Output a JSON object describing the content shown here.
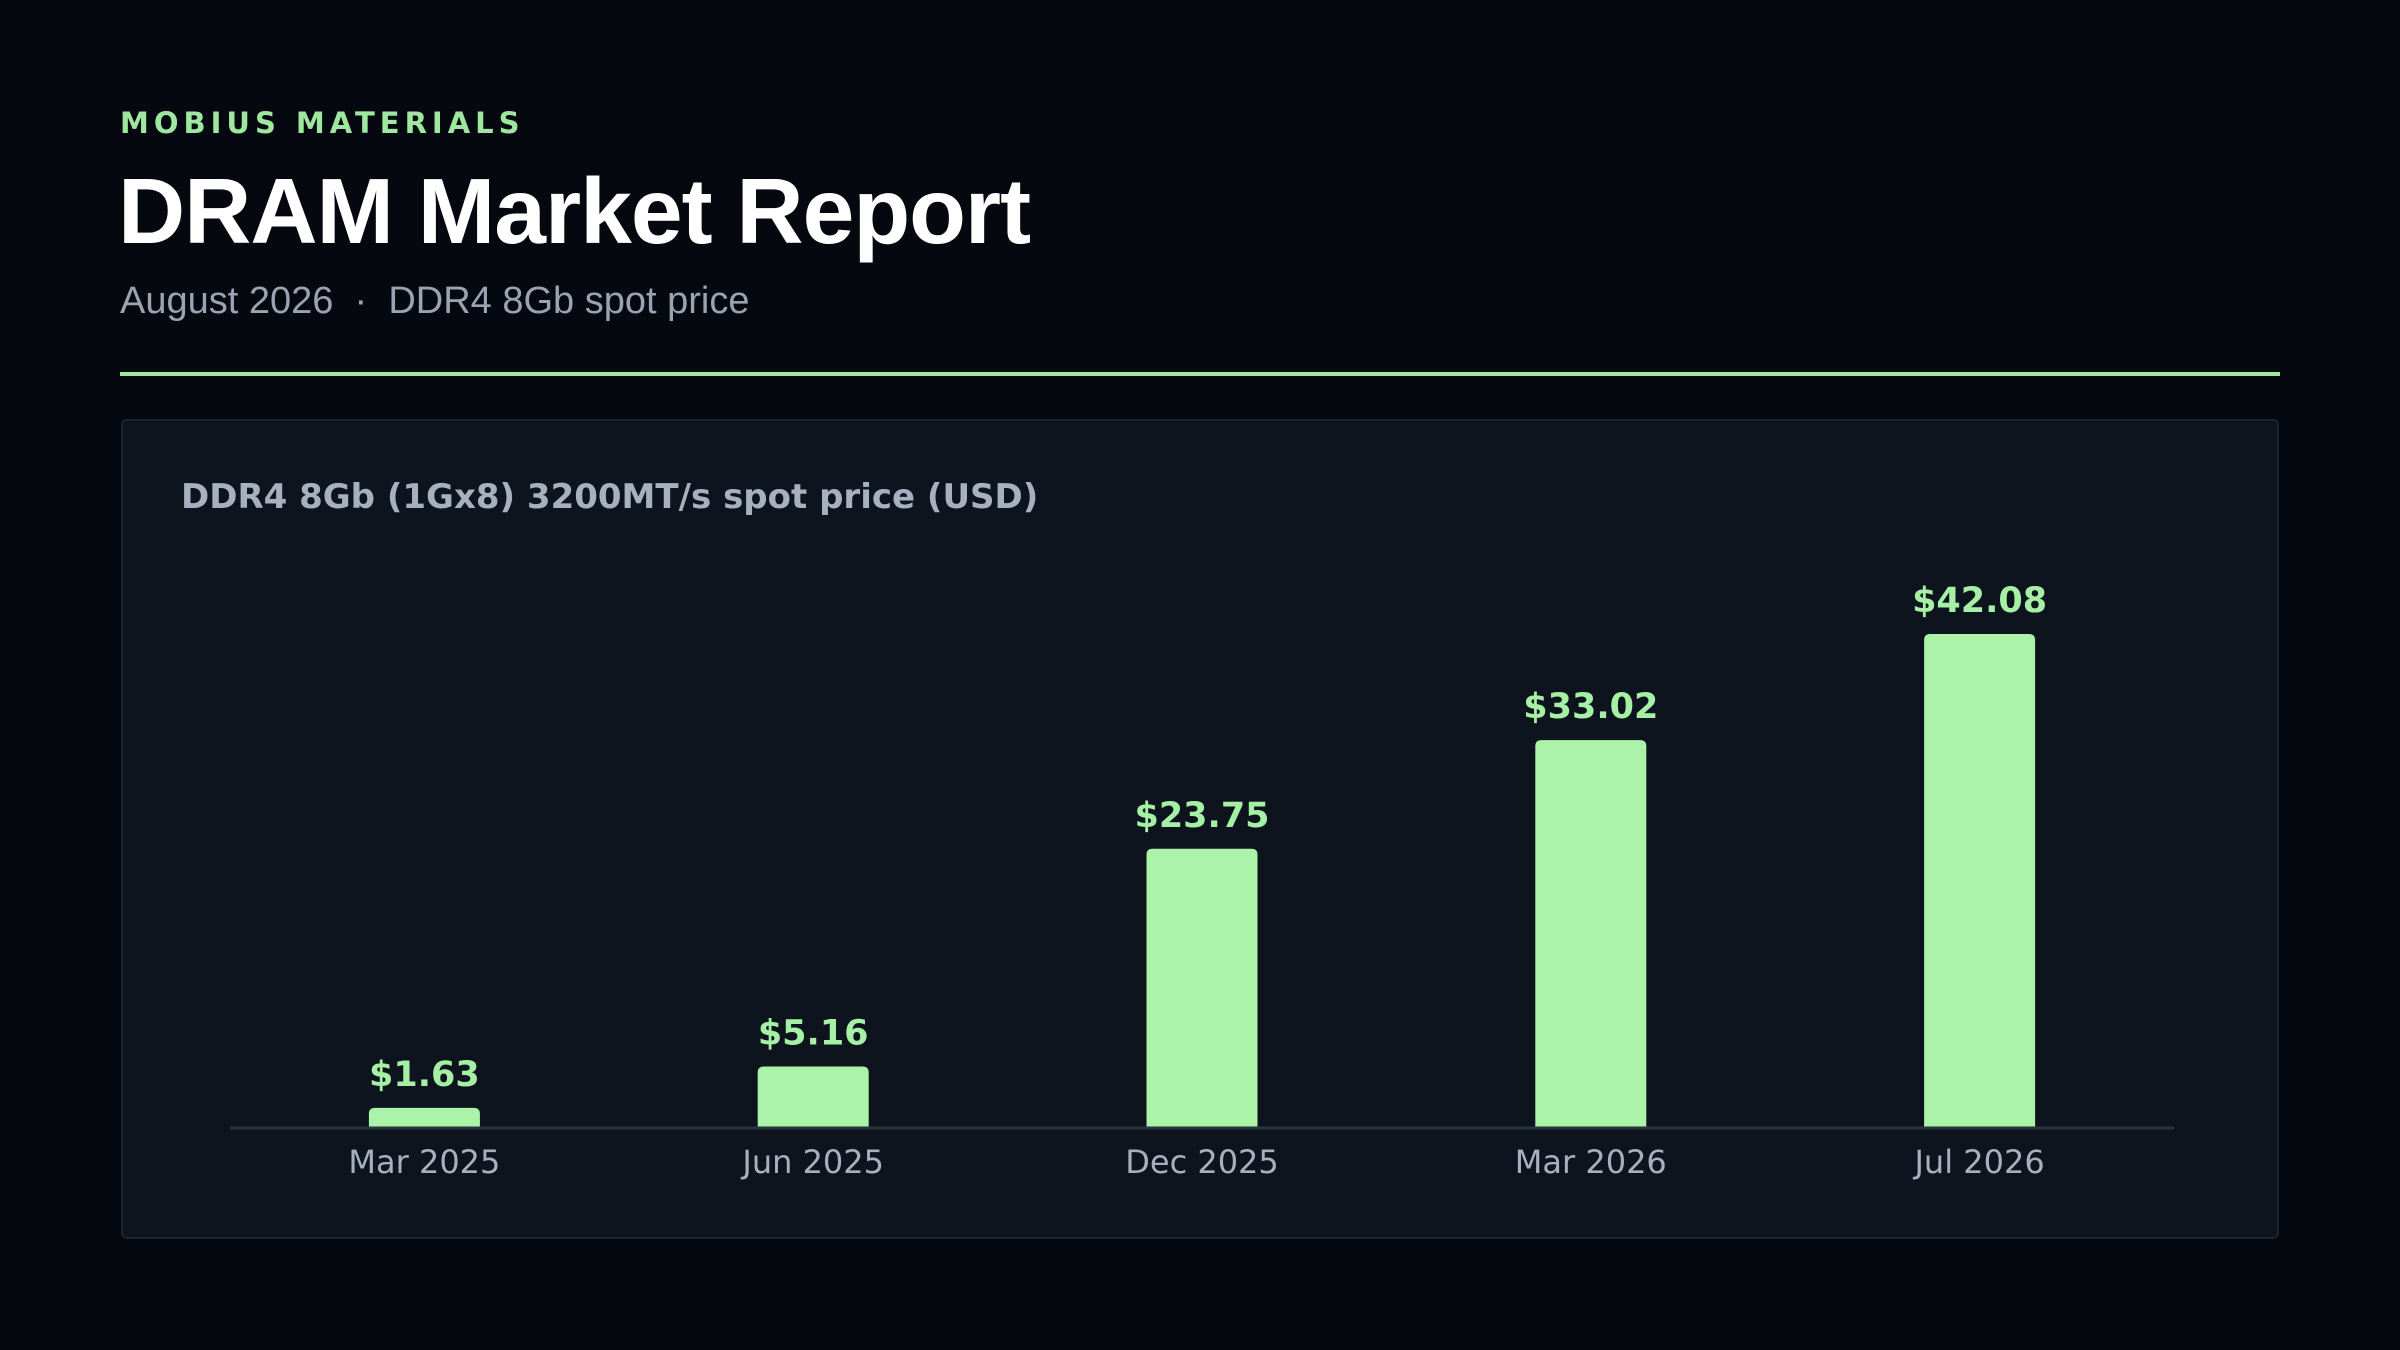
{
  "header": {
    "eyebrow": "MOBIUS MATERIALS",
    "title": "DRAM Market Report",
    "subtitle_date": "August 2026",
    "subtitle_separator": "·",
    "subtitle_topic": "DDR4 8Gb spot price"
  },
  "colors": {
    "background": "#05080f",
    "accent": "#9fe6a0",
    "bar": "#aaf3a8",
    "card": "#0e141d"
  },
  "chart_data": {
    "type": "bar",
    "title": "DDR4 8Gb (1Gx8) 3200MT/s spot price (USD)",
    "categories": [
      "Mar 2025",
      "Jun 2025",
      "Dec 2025",
      "Mar 2026",
      "Jul 2026"
    ],
    "values": [
      1.63,
      5.16,
      23.75,
      33.02,
      42.08
    ],
    "value_labels": [
      "$1.63",
      "$5.16",
      "$23.75",
      "$33.02",
      "$42.08"
    ],
    "xlabel": "",
    "ylabel": "",
    "ylim": [
      0,
      42.08
    ],
    "grid": false,
    "legend": "none"
  }
}
